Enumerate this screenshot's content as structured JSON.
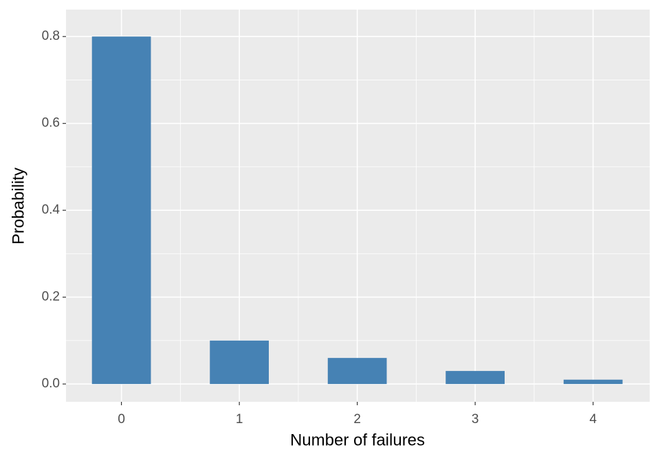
{
  "chart_data": {
    "type": "bar",
    "x": [
      0,
      1,
      2,
      3,
      4
    ],
    "values": [
      0.8,
      0.1,
      0.06,
      0.03,
      0.01
    ],
    "color": "#4682b4",
    "xlabel": "Number of failures",
    "ylabel": "Probability",
    "xlim": [
      -0.47,
      4.48
    ],
    "ylim": [
      -0.041,
      0.862
    ],
    "xticks": [
      0,
      1,
      2,
      3,
      4
    ],
    "yticks": [
      {
        "value": 0,
        "label": "0.0"
      },
      0.2,
      0.4,
      0.6,
      0.8
    ],
    "grid": true
  }
}
